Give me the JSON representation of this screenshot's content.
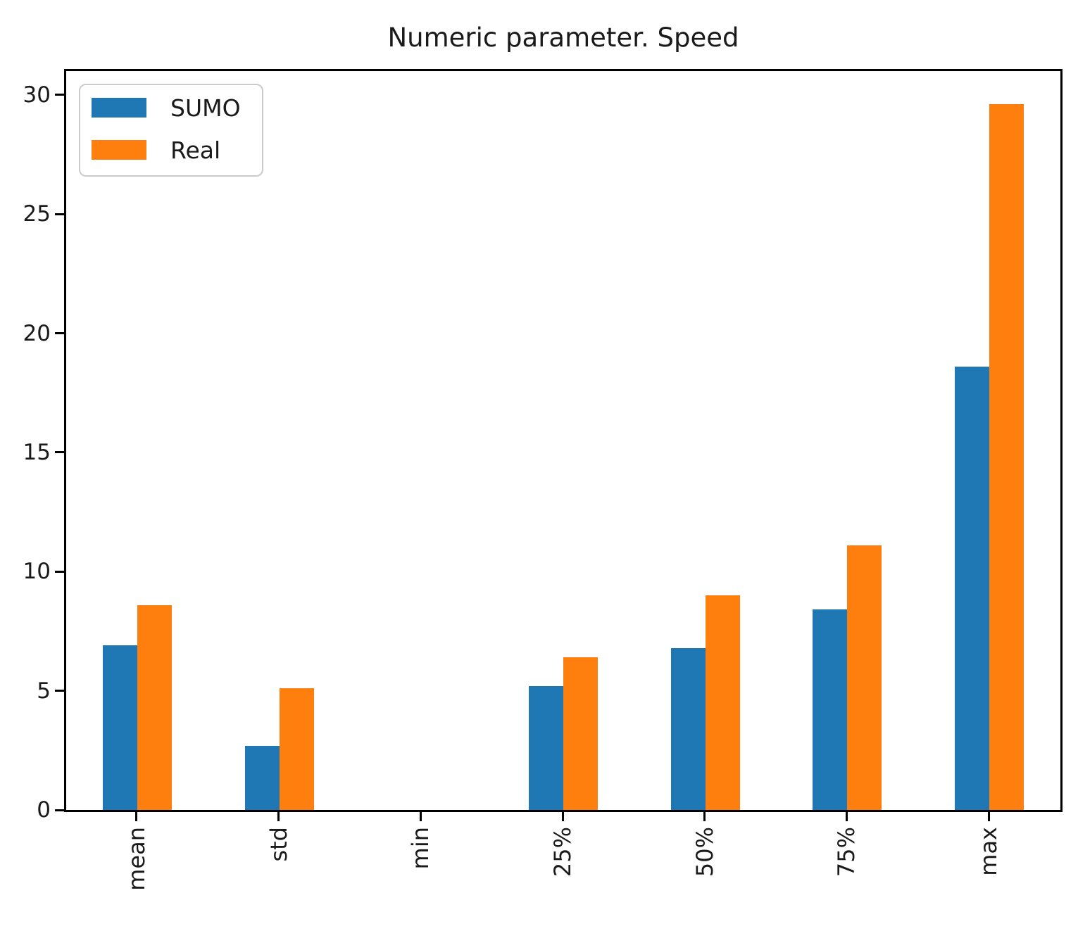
{
  "title": "Numeric parameter. Speed",
  "legend": {
    "entries": [
      {
        "label": "SUMO",
        "color": "#1f77b4"
      },
      {
        "label": "Real",
        "color": "#ff7f0e"
      }
    ],
    "position": "upper left"
  },
  "chart_data": {
    "type": "bar",
    "title": "Numeric parameter. Speed",
    "categories": [
      "mean",
      "std",
      "min",
      "25%",
      "50%",
      "75%",
      "max"
    ],
    "series": [
      {
        "name": "SUMO",
        "color": "#1f77b4",
        "values": [
          6.9,
          2.7,
          0,
          5.2,
          6.8,
          8.4,
          18.6
        ]
      },
      {
        "name": "Real",
        "color": "#ff7f0e",
        "values": [
          8.6,
          5.1,
          0,
          6.4,
          9.0,
          11.1,
          29.6
        ]
      }
    ],
    "xlabel": "",
    "ylabel": "",
    "ylim": [
      0,
      31
    ],
    "yticks": [
      0,
      5,
      10,
      15,
      20,
      25,
      30
    ],
    "xtick_rotation": 90,
    "grid": false,
    "legend_position": "upper left"
  }
}
